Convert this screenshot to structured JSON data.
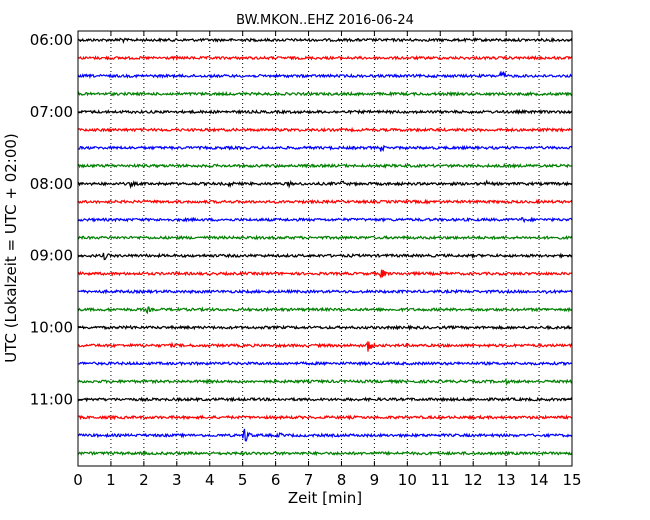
{
  "chart_data": {
    "type": "line",
    "title": "BW.MKON..EHZ 2016-06-24",
    "xlabel": "Zeit  [min]",
    "ylabel": "UTC (Lokalzeit = UTC + 02:00)",
    "xlim": [
      0,
      15
    ],
    "x_ticks": [
      "0",
      "1",
      "2",
      "3",
      "4",
      "5",
      "6",
      "7",
      "8",
      "9",
      "10",
      "11",
      "12",
      "13",
      "14",
      "15"
    ],
    "y_ticks": [
      "06:00",
      "07:00",
      "08:00",
      "09:00",
      "10:00",
      "11:00"
    ],
    "grid": "vertical dotted",
    "trace_colors": [
      "#000000",
      "#ff0000",
      "#0000ff",
      "#008000"
    ],
    "traces": [
      {
        "start": "06:00",
        "events": [
          {
            "t": 1.3,
            "a": 4.5
          },
          {
            "t": 0.4,
            "a": 1.5
          }
        ]
      },
      {
        "start": "06:15",
        "events": []
      },
      {
        "start": "06:30",
        "events": [
          {
            "t": 12.85,
            "a": 7
          }
        ]
      },
      {
        "start": "06:45",
        "events": []
      },
      {
        "start": "07:00",
        "events": [
          {
            "t": 6.9,
            "a": 1.5
          }
        ]
      },
      {
        "start": "07:15",
        "events": []
      },
      {
        "start": "07:30",
        "events": [
          {
            "t": 9.2,
            "a": 4.5
          },
          {
            "t": 4.6,
            "a": 1.5
          },
          {
            "t": 12.3,
            "a": 1.5
          }
        ]
      },
      {
        "start": "07:45",
        "events": [
          {
            "t": 2.2,
            "a": 1.5
          },
          {
            "t": 9.9,
            "a": 1.5
          }
        ]
      },
      {
        "start": "08:00",
        "events": [
          {
            "t": 1.6,
            "a": 4
          },
          {
            "t": 4.6,
            "a": 4
          },
          {
            "t": 6.4,
            "a": 3.5
          },
          {
            "t": 8.0,
            "a": 4
          },
          {
            "t": 12.4,
            "a": 3
          },
          {
            "t": 13.7,
            "a": 1.5
          }
        ]
      },
      {
        "start": "08:15",
        "events": []
      },
      {
        "start": "08:30",
        "events": [
          {
            "t": 13.5,
            "a": 3.5
          }
        ]
      },
      {
        "start": "08:45",
        "events": [
          {
            "t": 8.8,
            "a": 2
          },
          {
            "t": 6.2,
            "a": 1.5
          }
        ]
      },
      {
        "start": "09:00",
        "events": [
          {
            "t": 0.8,
            "a": 5
          },
          {
            "t": 2.2,
            "a": 2
          },
          {
            "t": 4.8,
            "a": 2
          },
          {
            "t": 8.3,
            "a": 2
          },
          {
            "t": 12.0,
            "a": 2
          }
        ]
      },
      {
        "start": "09:15",
        "events": [
          {
            "t": 9.2,
            "a": 7
          }
        ]
      },
      {
        "start": "09:30",
        "events": [
          {
            "t": 14.2,
            "a": 3
          },
          {
            "t": 7.0,
            "a": 1.5
          }
        ]
      },
      {
        "start": "09:45",
        "events": [
          {
            "t": 2.1,
            "a": 4
          }
        ]
      },
      {
        "start": "10:00",
        "events": [
          {
            "t": 1.6,
            "a": 3
          },
          {
            "t": 8.2,
            "a": 2
          }
        ]
      },
      {
        "start": "10:15",
        "events": [
          {
            "t": 8.8,
            "a": 8
          },
          {
            "t": 2.8,
            "a": 3
          }
        ]
      },
      {
        "start": "10:30",
        "events": []
      },
      {
        "start": "10:45",
        "events": [
          {
            "t": 13.0,
            "a": 3
          },
          {
            "t": 6.9,
            "a": 1.5
          }
        ]
      },
      {
        "start": "11:00",
        "events": []
      },
      {
        "start": "11:15",
        "events": []
      },
      {
        "start": "11:30",
        "events": [
          {
            "t": 5.05,
            "a": 11
          },
          {
            "t": 6.1,
            "a": 4
          },
          {
            "t": 2.3,
            "a": 2
          },
          {
            "t": 10.6,
            "a": 2
          }
        ]
      },
      {
        "start": "11:45",
        "events": [
          {
            "t": 2.0,
            "a": 2
          },
          {
            "t": 14.0,
            "a": 2.5
          }
        ]
      }
    ]
  }
}
